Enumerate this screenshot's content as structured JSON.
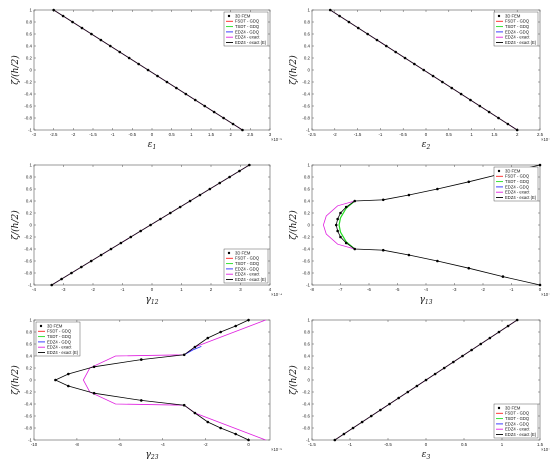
{
  "colors": {
    "fem": "#000000",
    "fsdt": "#ff2020",
    "tsdt": "#22dd22",
    "edz4_gdq": "#2a2aff",
    "edz4_exact": "#e020e0",
    "edz4_exact_e": "#000000"
  },
  "legend_labels": [
    "3D FEM",
    "FSDT - GDQ",
    "TSDT - GDQ",
    "EDZ4 - GDQ",
    "EDZ4 - exact",
    "EDZ4 - exact (E)"
  ],
  "chart_data": [
    {
      "type": "line",
      "xlabel": "ε1",
      "ylabel": "ζ/(h/2)",
      "xlim": [
        -3,
        3
      ],
      "ylim": [
        -1,
        1
      ],
      "xticks": [
        "-3",
        "-2.5",
        "-2",
        "-1.5",
        "-1",
        "-0.5",
        "0",
        "0.5",
        "1",
        "1.5",
        "2",
        "2.5",
        "3"
      ],
      "yticks": [
        "-1",
        "-0.8",
        "-0.6",
        "-0.4",
        "-0.2",
        "0",
        "0.2",
        "0.4",
        "0.6",
        "0.8",
        "1"
      ],
      "x_exponent": "×10⁻⁵",
      "legend_position": "top-right",
      "profile": "linear",
      "endpoints": [
        [
          -2.5,
          1
        ],
        [
          2.3,
          -1
        ]
      ],
      "series": [
        {
          "name": "3D FEM",
          "key": "fem"
        },
        {
          "name": "FSDT - GDQ",
          "key": "fsdt"
        },
        {
          "name": "TSDT - GDQ",
          "key": "tsdt"
        },
        {
          "name": "EDZ4 - GDQ",
          "key": "edz4_gdq"
        },
        {
          "name": "EDZ4 - exact",
          "key": "edz4_exact"
        },
        {
          "name": "EDZ4 - exact (E)",
          "key": "edz4_exact_e"
        }
      ]
    },
    {
      "type": "line",
      "xlabel": "ε2",
      "ylabel": "ζ/(h/2)",
      "xlim": [
        -2.5,
        2.5
      ],
      "ylim": [
        -1,
        1
      ],
      "xticks": [
        "-2.5",
        "-2",
        "-1.5",
        "-1",
        "-0.5",
        "0",
        "0.5",
        "1",
        "1.5",
        "2",
        "2.5"
      ],
      "yticks": [
        "-1",
        "-0.8",
        "-0.6",
        "-0.4",
        "-0.2",
        "0",
        "0.2",
        "0.4",
        "0.6",
        "0.8",
        "1"
      ],
      "x_exponent": "×10⁻⁴",
      "legend_position": "top-right",
      "profile": "linear",
      "endpoints": [
        [
          -2.1,
          1
        ],
        [
          2.0,
          -1
        ]
      ],
      "series": [
        {
          "name": "3D FEM",
          "key": "fem"
        },
        {
          "name": "FSDT - GDQ",
          "key": "fsdt"
        },
        {
          "name": "TSDT - GDQ",
          "key": "tsdt"
        },
        {
          "name": "EDZ4 - GDQ",
          "key": "edz4_gdq"
        },
        {
          "name": "EDZ4 - exact",
          "key": "edz4_exact"
        },
        {
          "name": "EDZ4 - exact (E)",
          "key": "edz4_exact_e"
        }
      ]
    },
    {
      "type": "line",
      "xlabel": "γ12",
      "ylabel": "ζ/(h/2)",
      "xlim": [
        -4,
        4
      ],
      "ylim": [
        -1,
        1
      ],
      "xticks": [
        "-4",
        "-3",
        "-2",
        "-1",
        "0",
        "1",
        "2",
        "3",
        "4"
      ],
      "yticks": [
        "-1",
        "-0.8",
        "-0.6",
        "-0.4",
        "-0.2",
        "0",
        "0.2",
        "0.4",
        "0.6",
        "0.8",
        "1"
      ],
      "x_exponent": "×10⁻⁴",
      "legend_position": "bottom-right",
      "profile": "linear",
      "endpoints": [
        [
          -3.4,
          -1
        ],
        [
          3.3,
          1
        ]
      ],
      "series": [
        {
          "name": "3D FEM",
          "key": "fem"
        },
        {
          "name": "FSDT - GDQ",
          "key": "fsdt"
        },
        {
          "name": "TSDT - GDQ",
          "key": "tsdt"
        },
        {
          "name": "EDZ4 - GDQ",
          "key": "edz4_gdq"
        },
        {
          "name": "EDZ4 - exact",
          "key": "edz4_exact"
        },
        {
          "name": "EDZ4 - exact (E)",
          "key": "edz4_exact_e"
        }
      ]
    },
    {
      "type": "line",
      "xlabel": "γ13",
      "ylabel": "ζ/(h/2)",
      "xlim": [
        -8,
        0
      ],
      "ylim": [
        -1,
        1
      ],
      "xticks": [
        "-8",
        "-7",
        "-6",
        "-5",
        "-4",
        "-3",
        "-2",
        "-1",
        "0"
      ],
      "yticks": [
        "-1",
        "-0.8",
        "-0.6",
        "-0.4",
        "-0.2",
        "0",
        "0.2",
        "0.4",
        "0.6",
        "0.8",
        "1"
      ],
      "x_exponent": "×10⁻⁵",
      "legend_position": "top-right",
      "profile": "parabola",
      "curves": {
        "fem": [
          [
            0,
            1
          ],
          [
            -1.3,
            0.86
          ],
          [
            -2.5,
            0.72
          ],
          [
            -3.6,
            0.6
          ],
          [
            -4.6,
            0.5
          ],
          [
            -5.5,
            0.42
          ],
          [
            -6.5,
            0.4
          ],
          [
            -6.8,
            0.3
          ],
          [
            -7.0,
            0.2
          ],
          [
            -7.1,
            0.1
          ],
          [
            -7.15,
            0
          ],
          [
            -7.1,
            -0.1
          ],
          [
            -7.0,
            -0.2
          ],
          [
            -6.8,
            -0.3
          ],
          [
            -6.5,
            -0.4
          ],
          [
            -5.5,
            -0.42
          ],
          [
            -4.6,
            -0.5
          ],
          [
            -3.6,
            -0.6
          ],
          [
            -2.5,
            -0.72
          ],
          [
            -1.3,
            -0.86
          ],
          [
            0,
            -1
          ]
        ],
        "edz4_exact": [
          [
            -6.5,
            0.4
          ],
          [
            -7.1,
            0.32
          ],
          [
            -7.5,
            0.15
          ],
          [
            -7.6,
            0
          ],
          [
            -7.5,
            -0.15
          ],
          [
            -7.1,
            -0.32
          ],
          [
            -6.5,
            -0.4
          ]
        ],
        "tsdt": [
          [
            -6.5,
            0.4
          ],
          [
            -6.8,
            0.28
          ],
          [
            -7.0,
            0.12
          ],
          [
            -7.05,
            0
          ],
          [
            -7.0,
            -0.12
          ],
          [
            -6.8,
            -0.28
          ],
          [
            -6.5,
            -0.4
          ]
        ]
      },
      "series": [
        {
          "name": "3D FEM",
          "key": "fem"
        },
        {
          "name": "FSDT - GDQ",
          "key": "fsdt"
        },
        {
          "name": "TSDT - GDQ",
          "key": "tsdt"
        },
        {
          "name": "EDZ4 - GDQ",
          "key": "edz4_gdq"
        },
        {
          "name": "EDZ4 - exact",
          "key": "edz4_exact"
        },
        {
          "name": "EDZ4 - exact (E)",
          "key": "edz4_exact_e"
        }
      ]
    },
    {
      "type": "line",
      "xlabel": "γ23",
      "ylabel": "ζ/(h/2)",
      "xlim": [
        -10,
        1
      ],
      "ylim": [
        -1,
        1
      ],
      "xticks": [
        "-10",
        "-8",
        "-6",
        "-4",
        "-2",
        "0"
      ],
      "yticks": [
        "-1",
        "-0.8",
        "-0.6",
        "-0.4",
        "-0.2",
        "0",
        "0.2",
        "0.4",
        "0.6",
        "0.8",
        "1"
      ],
      "x_exponent": "×10⁻⁵",
      "legend_position": "top-left",
      "profile": "cusp",
      "curves": {
        "fem": [
          [
            0,
            1
          ],
          [
            -0.6,
            0.9
          ],
          [
            -1.3,
            0.8
          ],
          [
            -1.9,
            0.7
          ],
          [
            -2.5,
            0.55
          ],
          [
            -3.0,
            0.42
          ],
          [
            -5.0,
            0.34
          ],
          [
            -7.2,
            0.22
          ],
          [
            -8.4,
            0.1
          ],
          [
            -9.0,
            0
          ],
          [
            -8.4,
            -0.1
          ],
          [
            -7.2,
            -0.22
          ],
          [
            -5.0,
            -0.34
          ],
          [
            -3.0,
            -0.42
          ],
          [
            -2.5,
            -0.55
          ],
          [
            -1.9,
            -0.7
          ],
          [
            -1.3,
            -0.8
          ],
          [
            -0.6,
            -0.9
          ],
          [
            0,
            -1
          ]
        ],
        "edz4_exact": [
          [
            0.8,
            1
          ],
          [
            -2.5,
            0.55
          ],
          [
            -3.0,
            0.42
          ],
          [
            -6.2,
            0.4
          ],
          [
            -7.4,
            0.2
          ],
          [
            -7.7,
            0
          ],
          [
            -7.4,
            -0.2
          ],
          [
            -6.2,
            -0.4
          ],
          [
            -3.0,
            -0.42
          ],
          [
            -2.5,
            -0.55
          ],
          [
            0.8,
            -1
          ]
        ],
        "edz4_gdq": [
          [
            -3.0,
            0.42
          ],
          [
            -2.6,
            0.5
          ],
          [
            -2.2,
            0.56
          ]
        ]
      },
      "series": [
        {
          "name": "3D FEM",
          "key": "fem"
        },
        {
          "name": "FSDT - GDQ",
          "key": "fsdt"
        },
        {
          "name": "TSDT - GDQ",
          "key": "tsdt"
        },
        {
          "name": "EDZ4 - GDQ",
          "key": "edz4_gdq"
        },
        {
          "name": "EDZ4 - exact",
          "key": "edz4_exact"
        },
        {
          "name": "EDZ4 - exact (E)",
          "key": "edz4_exact_e"
        }
      ]
    },
    {
      "type": "line",
      "xlabel": "ε3",
      "ylabel": "ζ/(h/2)",
      "xlim": [
        -1.5,
        1.5
      ],
      "ylim": [
        -1,
        1
      ],
      "xticks": [
        "-1.5",
        "-1",
        "-0.5",
        "0",
        "0.5",
        "1",
        "1.5"
      ],
      "yticks": [
        "-1",
        "-0.8",
        "-0.6",
        "-0.4",
        "-0.2",
        "0",
        "0.2",
        "0.4",
        "0.6",
        "0.8",
        "1"
      ],
      "x_exponent": "×10⁻⁶",
      "legend_position": "bottom-right",
      "profile": "linear",
      "endpoints": [
        [
          -1.2,
          -1
        ],
        [
          1.2,
          1
        ]
      ],
      "series": [
        {
          "name": "3D FEM",
          "key": "fem"
        },
        {
          "name": "FSDT - GDQ",
          "key": "fsdt"
        },
        {
          "name": "TSDT - GDQ",
          "key": "tsdt"
        },
        {
          "name": "EDZ4 - GDQ",
          "key": "edz4_gdq"
        },
        {
          "name": "EDZ4 - exact",
          "key": "edz4_exact"
        },
        {
          "name": "EDZ4 - exact (E)",
          "key": "edz4_exact_e"
        }
      ]
    }
  ]
}
